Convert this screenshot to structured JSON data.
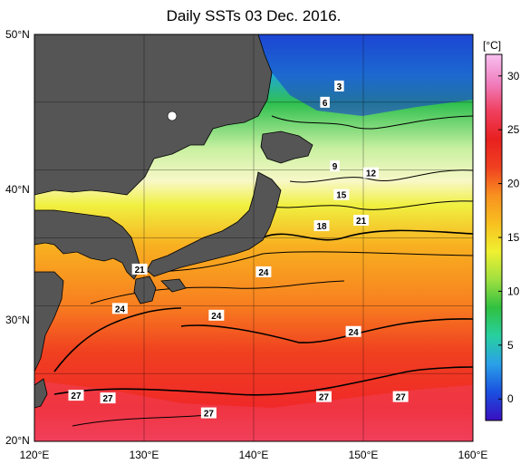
{
  "title": "Daily SSTs 03 Dec. 2016.",
  "colorbar": {
    "unit": "[°C]",
    "ticks": [
      "30",
      "25",
      "20",
      "15",
      "10",
      "5",
      "0"
    ],
    "range": [
      -2,
      32
    ],
    "colors": [
      "#3a0fc0",
      "#1a4fe0",
      "#2aa0e8",
      "#28d0a0",
      "#30c040",
      "#a0e040",
      "#f0f030",
      "#f8c020",
      "#f89020",
      "#f04020",
      "#e82020",
      "#f04060",
      "#f080c0",
      "#f8c0f0"
    ]
  },
  "map": {
    "lat_labels": [
      "50°N",
      "40°N",
      "30°N",
      "20°N"
    ],
    "lon_labels": [
      "120°E",
      "130°E",
      "140°E",
      "150°E",
      "160°E"
    ],
    "extent": {
      "lon": [
        120,
        160
      ],
      "lat": [
        20,
        50
      ]
    },
    "land_color": "#555555"
  },
  "contour_labels": [
    {
      "text": "3",
      "lon": 147.8,
      "lat": 46.2
    },
    {
      "text": "6",
      "lon": 146.5,
      "lat": 45.0
    },
    {
      "text": "9",
      "lon": 147.4,
      "lat": 40.3
    },
    {
      "text": "12",
      "lon": 150.7,
      "lat": 39.8
    },
    {
      "text": "15",
      "lon": 148.0,
      "lat": 38.2
    },
    {
      "text": "18",
      "lon": 146.2,
      "lat": 35.9
    },
    {
      "text": "21",
      "lon": 149.8,
      "lat": 36.3
    },
    {
      "text": "21",
      "lon": 129.6,
      "lat": 32.7
    },
    {
      "text": "24",
      "lon": 140.9,
      "lat": 32.5
    },
    {
      "text": "24",
      "lon": 127.8,
      "lat": 29.8
    },
    {
      "text": "24",
      "lon": 136.6,
      "lat": 29.3
    },
    {
      "text": "24",
      "lon": 149.1,
      "lat": 28.1
    },
    {
      "text": "27",
      "lon": 123.8,
      "lat": 23.4
    },
    {
      "text": "27",
      "lon": 126.7,
      "lat": 23.2
    },
    {
      "text": "27",
      "lon": 146.4,
      "lat": 23.3
    },
    {
      "text": "27",
      "lon": 153.4,
      "lat": 23.3
    },
    {
      "text": "27",
      "lon": 135.9,
      "lat": 22.1
    }
  ]
}
